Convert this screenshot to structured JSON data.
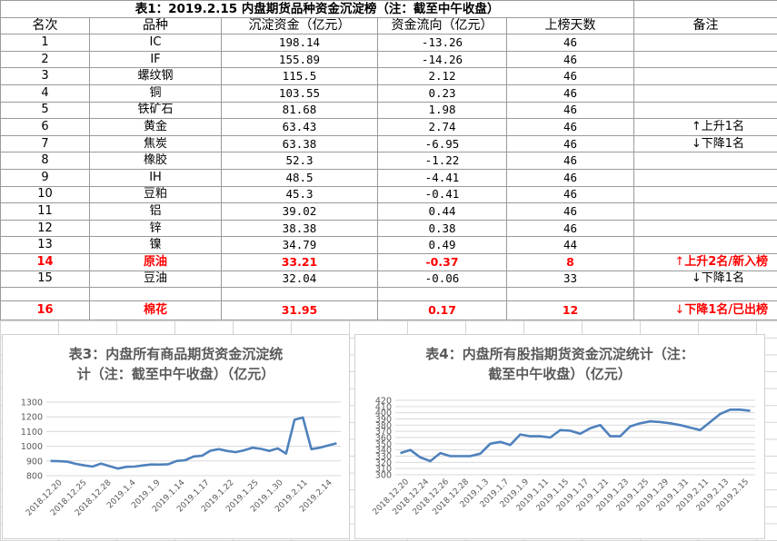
{
  "table": {
    "title": "表1：2019.2.15 内盘期货品种资金沉淀榜（注：截至中午收盘）",
    "headers": [
      "名次",
      "品种",
      "沉淀资金（亿元）",
      "资金流向（亿元）",
      "上榜天数",
      "备注"
    ],
    "rows": [
      {
        "rank": "1",
        "name": "IC",
        "fund": "198.14",
        "flow": "-13.26",
        "days": "46",
        "note": "",
        "highlight": false
      },
      {
        "rank": "2",
        "name": "IF",
        "fund": "155.89",
        "flow": "-14.26",
        "days": "46",
        "note": "",
        "highlight": false
      },
      {
        "rank": "3",
        "name": "螺纹钢",
        "fund": "115.5",
        "flow": "2.12",
        "days": "46",
        "note": "",
        "highlight": false
      },
      {
        "rank": "4",
        "name": "铜",
        "fund": "103.55",
        "flow": "0.23",
        "days": "46",
        "note": "",
        "highlight": false
      },
      {
        "rank": "5",
        "name": "铁矿石",
        "fund": "81.68",
        "flow": "1.98",
        "days": "46",
        "note": "",
        "highlight": false
      },
      {
        "rank": "6",
        "name": "黄金",
        "fund": "63.43",
        "flow": "2.74",
        "days": "46",
        "note": "上升1名",
        "arrow": "↑",
        "highlight": false
      },
      {
        "rank": "7",
        "name": "焦炭",
        "fund": "63.38",
        "flow": "-6.95",
        "days": "46",
        "note": "下降1名",
        "arrow": "↓",
        "highlight": false
      },
      {
        "rank": "8",
        "name": "橡胶",
        "fund": "52.3",
        "flow": "-1.22",
        "days": "46",
        "note": "",
        "highlight": false
      },
      {
        "rank": "9",
        "name": "IH",
        "fund": "48.5",
        "flow": "-4.41",
        "days": "46",
        "note": "",
        "highlight": false
      },
      {
        "rank": "10",
        "name": "豆粕",
        "fund": "45.3",
        "flow": "-0.41",
        "days": "46",
        "note": "",
        "highlight": false
      },
      {
        "rank": "11",
        "name": "铝",
        "fund": "39.02",
        "flow": "0.44",
        "days": "46",
        "note": "",
        "highlight": false
      },
      {
        "rank": "12",
        "name": "锌",
        "fund": "38.38",
        "flow": "0.38",
        "days": "46",
        "note": "",
        "highlight": false
      },
      {
        "rank": "13",
        "name": "镍",
        "fund": "34.79",
        "flow": "0.49",
        "days": "44",
        "note": "",
        "highlight": false
      },
      {
        "rank": "14",
        "name": "原油",
        "fund": "33.21",
        "flow": "-0.37",
        "days": "8",
        "note": "上升2名/新入榜",
        "arrow": "↑",
        "highlight": true
      },
      {
        "rank": "15",
        "name": "豆油",
        "fund": "32.04",
        "flow": "-0.06",
        "days": "33",
        "note": "下降1名",
        "arrow": "↓",
        "highlight": false
      },
      {
        "rank": "16",
        "name": "棉花",
        "fund": "31.95",
        "flow": "0.17",
        "days": "12",
        "note": "下降1名/已出榜",
        "arrow": "↓",
        "highlight": true
      }
    ]
  },
  "chart_data": [
    {
      "type": "line",
      "title": "表3：内盘所有商品期货资金沉淀统计（注：截至中午收盘）（亿元）",
      "title_lines": [
        "表3：内盘所有商品期货资金沉淀统",
        "计（注：截至中午收盘）（亿元）"
      ],
      "ylim": [
        800,
        1300
      ],
      "yticks": [
        800,
        900,
        1000,
        1100,
        1200,
        1300
      ],
      "xtick_labels": [
        "2018.12.20",
        "2018.12.25",
        "2018.12.28",
        "2019.1.4",
        "2019.1.9",
        "2019.1.14",
        "2019.1.17",
        "2019.1.22",
        "2019.1.25",
        "2019.1.30",
        "2019.2.11",
        "2019.2.14"
      ],
      "values": [
        900,
        898,
        895,
        880,
        870,
        862,
        882,
        865,
        848,
        860,
        862,
        870,
        876,
        875,
        878,
        900,
        905,
        930,
        935,
        970,
        980,
        968,
        960,
        972,
        990,
        982,
        968,
        985,
        950,
        1180,
        1195,
        980,
        990,
        1005,
        1020
      ],
      "color": "#4f81bd",
      "grid": true
    },
    {
      "type": "line",
      "title": "表4：内盘所有股指期货资金沉淀统计（注：截至中午收盘）（亿元）",
      "title_lines": [
        "表4：内盘所有股指期货资金沉淀统计（注：",
        "截至中午收盘）（亿元）"
      ],
      "ylim": [
        300,
        420
      ],
      "yticks": [
        300,
        310,
        320,
        330,
        340,
        350,
        360,
        370,
        380,
        390,
        400,
        410,
        420
      ],
      "xtick_labels": [
        "2018.12.20",
        "2018.12.24",
        "2018.12.26",
        "2018.12.28",
        "2019.1.3",
        "2019.1.7",
        "2019.1.9",
        "2019.1.11",
        "2019.1.15",
        "2019.1.17",
        "2019.1.21",
        "2019.1.23",
        "2019.1.25",
        "2019.1.29",
        "2019.1.31",
        "2019.2.11",
        "2019.2.13",
        "2019.2.15"
      ],
      "values": [
        335,
        340,
        328,
        322,
        335,
        330,
        330,
        330,
        334,
        350,
        353,
        348,
        365,
        362,
        362,
        360,
        372,
        371,
        366,
        375,
        380,
        362,
        362,
        378,
        383,
        386,
        385,
        383,
        380,
        376,
        372,
        385,
        398,
        405,
        405,
        403
      ],
      "color": "#4f81bd",
      "grid": true
    }
  ]
}
